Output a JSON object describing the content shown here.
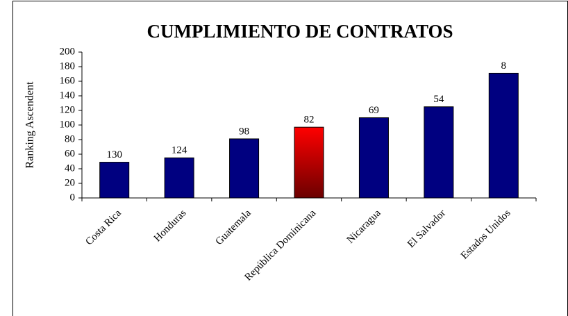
{
  "chart_data": {
    "type": "bar",
    "title": "CUMPLIMIENTO DE CONTRATOS",
    "y_label": "Ranking Ascendent",
    "categories": [
      "Costa Rica",
      "Honduras",
      "Guatemala",
      "República Dominicana",
      "Nicaragua",
      "El Salvador",
      "Estados Unidos"
    ],
    "values": [
      49,
      55,
      81,
      97,
      110,
      125,
      171
    ],
    "ranks": [
      130,
      124,
      98,
      82,
      69,
      54,
      8
    ],
    "color": "#000080",
    "highlight": {
      "index": 3,
      "colors": [
        "#ff0000",
        "#6b0000"
      ]
    },
    "ylim": [
      0,
      200
    ],
    "yticks": [
      0,
      20,
      40,
      60,
      80,
      100,
      120,
      140,
      160,
      180,
      200
    ],
    "grid": false
  }
}
